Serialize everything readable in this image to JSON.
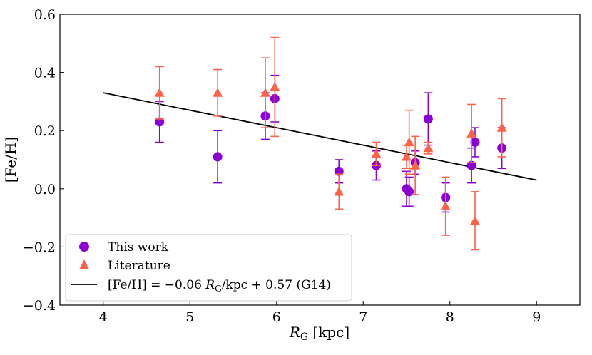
{
  "chart_data": {
    "type": "scatter",
    "xlabel": "R_G [kpc]",
    "xlabel_main": "R",
    "xlabel_sub": "G",
    "xlabel_unit": " [kpc]",
    "ylabel": "[Fe/H]",
    "xlim": [
      3.5,
      9.5
    ],
    "ylim": [
      -0.4,
      0.6
    ],
    "xticks": [
      4,
      5,
      6,
      7,
      8,
      9
    ],
    "yticks": [
      -0.4,
      -0.2,
      0.0,
      0.2,
      0.4,
      0.6
    ],
    "xtick_labels": [
      "4",
      "5",
      "6",
      "7",
      "8",
      "9"
    ],
    "ytick_labels": [
      "−0.4",
      "−0.2",
      "0.0",
      "0.2",
      "0.4",
      "0.6"
    ],
    "grid": false,
    "legend_position": "lower-left",
    "series": [
      {
        "name": "This work",
        "marker": "circle",
        "color": "#8b00d6",
        "points": [
          {
            "x": 4.65,
            "y": 0.23,
            "err": 0.07
          },
          {
            "x": 5.32,
            "y": 0.11,
            "err": 0.09
          },
          {
            "x": 5.87,
            "y": 0.25,
            "err": 0.08
          },
          {
            "x": 5.98,
            "y": 0.31,
            "err": 0.08
          },
          {
            "x": 6.72,
            "y": 0.06,
            "err": 0.04
          },
          {
            "x": 7.15,
            "y": 0.08,
            "err": 0.05
          },
          {
            "x": 7.5,
            "y": 0.0,
            "err": 0.06
          },
          {
            "x": 7.53,
            "y": -0.01,
            "err": 0.05
          },
          {
            "x": 7.6,
            "y": 0.09,
            "err": 0.04
          },
          {
            "x": 7.75,
            "y": 0.24,
            "err": 0.09
          },
          {
            "x": 7.95,
            "y": -0.03,
            "err": 0.05
          },
          {
            "x": 8.25,
            "y": 0.08,
            "err": 0.06
          },
          {
            "x": 8.29,
            "y": 0.16,
            "err": 0.05
          },
          {
            "x": 8.6,
            "y": 0.14,
            "err": 0.07
          }
        ]
      },
      {
        "name": "Literature",
        "marker": "triangle",
        "color": "#ff6347",
        "points": [
          {
            "x": 4.65,
            "y": 0.33,
            "err": 0.09
          },
          {
            "x": 5.32,
            "y": 0.33,
            "err": 0.08
          },
          {
            "x": 5.87,
            "y": 0.33,
            "err": 0.12
          },
          {
            "x": 5.98,
            "y": 0.35,
            "err": 0.17
          },
          {
            "x": 6.72,
            "y": -0.01,
            "err": 0.06
          },
          {
            "x": 7.15,
            "y": 0.12,
            "err": 0.04
          },
          {
            "x": 7.5,
            "y": 0.11,
            "err": 0.04
          },
          {
            "x": 7.53,
            "y": 0.16,
            "err": 0.11
          },
          {
            "x": 7.6,
            "y": 0.08,
            "err": 0.1
          },
          {
            "x": 7.75,
            "y": 0.14,
            "err": 0.02
          },
          {
            "x": 7.95,
            "y": -0.06,
            "err": 0.1
          },
          {
            "x": 8.25,
            "y": 0.19,
            "err": 0.1
          },
          {
            "x": 8.29,
            "y": -0.11,
            "err": 0.1
          },
          {
            "x": 8.6,
            "y": 0.21,
            "err": 0.1
          }
        ]
      }
    ],
    "fit_line": {
      "name": "[Fe/H] = −0.06 R_G/kpc + 0.57 (G14)",
      "label_pre": "[Fe/H] = −0.06 ",
      "label_r": "R",
      "label_sub": "G",
      "label_post": "/kpc + 0.57 (G14)",
      "color": "#000000",
      "x": [
        4.0,
        9.0
      ],
      "y": [
        0.33,
        0.03
      ]
    }
  }
}
